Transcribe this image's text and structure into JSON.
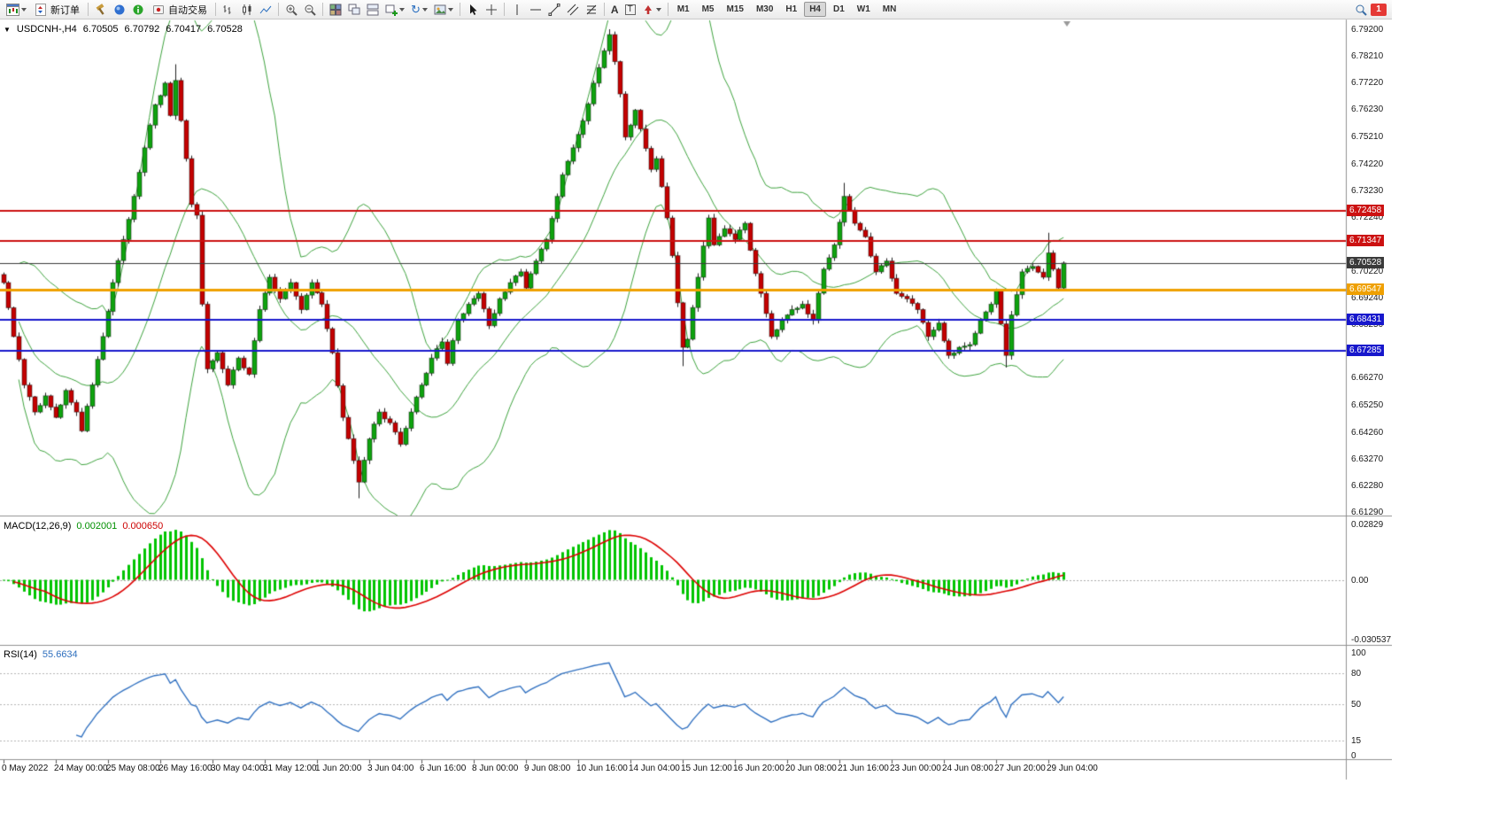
{
  "toolbar": {
    "new_order_label": "新订单",
    "autotrading_label": "自动交易",
    "timeframes": [
      "M1",
      "M5",
      "M15",
      "M30",
      "H1",
      "H4",
      "D1",
      "W1",
      "MN"
    ],
    "active_timeframe": "H4",
    "notification_count": "1"
  },
  "chart_header": {
    "symbol_period": "USDCNH-,H4",
    "open": "6.70505",
    "high": "6.70792",
    "low": "6.70417",
    "close": "6.70528"
  },
  "price_axis": {
    "ticks": [
      "6.79200",
      "6.78210",
      "6.77220",
      "6.76230",
      "6.75210",
      "6.74220",
      "6.73230",
      "6.72240",
      "6.70220",
      "6.69240",
      "6.68250",
      "6.66270",
      "6.65250",
      "6.64260",
      "6.63270",
      "6.62280",
      "6.61290"
    ]
  },
  "levels": [
    {
      "label": "6.72458",
      "price": 6.72458,
      "color": "#cc1111",
      "thickness": 2
    },
    {
      "label": "6.71347",
      "price": 6.71347,
      "color": "#cc1111",
      "thickness": 2
    },
    {
      "label": "6.69547",
      "price": 6.69547,
      "color": "#efa000",
      "thickness": 3
    },
    {
      "label": "6.68431",
      "price": 6.68431,
      "color": "#1717cc",
      "thickness": 2
    },
    {
      "label": "6.67285",
      "price": 6.67285,
      "color": "#1717cc",
      "thickness": 2
    }
  ],
  "current_price": {
    "label": "6.70528",
    "price": 6.70528,
    "color": "#3a3a3a"
  },
  "macd_panel": {
    "title": "MACD(12,26,9)",
    "value_main": "0.002001",
    "value_signal": "0.000650",
    "axis_labels": [
      {
        "text": "0.02829",
        "value": 0.02829
      },
      {
        "text": "0.00",
        "value": 0
      },
      {
        "text": "-0.030537",
        "value": -0.030537
      }
    ]
  },
  "rsi_panel": {
    "title": "RSI(14)",
    "value": "55.6634",
    "axis_labels": [
      {
        "text": "100",
        "value": 100
      },
      {
        "text": "80",
        "value": 80
      },
      {
        "text": "50",
        "value": 50
      },
      {
        "text": "15",
        "value": 15
      },
      {
        "text": "0",
        "value": 0
      }
    ],
    "levels": [
      80,
      50,
      15
    ]
  },
  "time_axis": {
    "labels": [
      "0 May 2022",
      "24 May 00:00",
      "25 May 08:00",
      "26 May 16:00",
      "30 May 04:00",
      "31 May 12:00",
      "1 Jun 20:00",
      "3 Jun 04:00",
      "6 Jun 16:00",
      "8 Jun 00:00",
      "9 Jun 08:00",
      "10 Jun 16:00",
      "14 Jun 04:00",
      "15 Jun 12:00",
      "16 Jun 20:00",
      "20 Jun 08:00",
      "21 Jun 16:00",
      "23 Jun 00:00",
      "24 Jun 08:00",
      "27 Jun 20:00",
      "29 Jun 04:00"
    ]
  },
  "chart_data": {
    "type": "candlestick",
    "symbol": "USDCNH",
    "period": "H4",
    "bars": 204,
    "price_range": {
      "max": 6.792,
      "min": 6.6129
    },
    "colors": {
      "up": "#0fa30f",
      "down": "#c40000",
      "wick": "#1f1f1f",
      "bollinger": "#3da23d",
      "macd_hist": "#00c400",
      "macd_signal": "#dd0000",
      "rsi": "#3070c0"
    },
    "indicators": [
      "Bollinger Bands(20,2)",
      "MACD(12,26,9)",
      "RSI(14)"
    ],
    "close_anchors": [
      [
        0,
        6.698
      ],
      [
        2,
        6.678
      ],
      [
        4,
        6.66
      ],
      [
        6,
        6.65
      ],
      [
        8,
        6.656
      ],
      [
        10,
        6.648
      ],
      [
        12,
        6.658
      ],
      [
        14,
        6.65
      ],
      [
        15,
        6.643
      ],
      [
        17,
        6.66
      ],
      [
        19,
        6.678
      ],
      [
        21,
        6.698
      ],
      [
        23,
        6.714
      ],
      [
        25,
        6.73
      ],
      [
        27,
        6.748
      ],
      [
        29,
        6.764
      ],
      [
        31,
        6.772
      ],
      [
        32,
        6.76
      ],
      [
        33,
        6.773
      ],
      [
        35,
        6.744
      ],
      [
        36,
        6.727
      ],
      [
        37,
        6.723
      ],
      [
        38,
        6.69
      ],
      [
        39,
        6.666
      ],
      [
        41,
        6.672
      ],
      [
        43,
        6.66
      ],
      [
        45,
        6.67
      ],
      [
        47,
        6.664
      ],
      [
        49,
        6.688
      ],
      [
        51,
        6.7
      ],
      [
        53,
        6.692
      ],
      [
        55,
        6.698
      ],
      [
        57,
        6.688
      ],
      [
        59,
        6.698
      ],
      [
        61,
        6.69
      ],
      [
        63,
        6.672
      ],
      [
        65,
        6.648
      ],
      [
        67,
        6.632
      ],
      [
        68,
        6.624
      ],
      [
        70,
        6.64
      ],
      [
        72,
        6.65
      ],
      [
        74,
        6.646
      ],
      [
        76,
        6.638
      ],
      [
        78,
        6.65
      ],
      [
        80,
        6.66
      ],
      [
        82,
        6.67
      ],
      [
        84,
        6.676
      ],
      [
        85,
        6.668
      ],
      [
        87,
        6.684
      ],
      [
        89,
        6.69
      ],
      [
        91,
        6.694
      ],
      [
        93,
        6.682
      ],
      [
        95,
        6.692
      ],
      [
        97,
        6.698
      ],
      [
        99,
        6.702
      ],
      [
        100,
        6.696
      ],
      [
        102,
        6.706
      ],
      [
        104,
        6.714
      ],
      [
        106,
        6.73
      ],
      [
        107,
        6.738
      ],
      [
        109,
        6.748
      ],
      [
        111,
        6.758
      ],
      [
        113,
        6.772
      ],
      [
        115,
        6.784
      ],
      [
        116,
        6.79
      ],
      [
        117,
        6.78
      ],
      [
        118,
        6.768
      ],
      [
        119,
        6.752
      ],
      [
        121,
        6.762
      ],
      [
        122,
        6.755
      ],
      [
        124,
        6.74
      ],
      [
        125,
        6.744
      ],
      [
        127,
        6.722
      ],
      [
        128,
        6.708
      ],
      [
        130,
        6.674
      ],
      [
        131,
        6.677
      ],
      [
        133,
        6.7
      ],
      [
        135,
        6.722
      ],
      [
        136,
        6.712
      ],
      [
        138,
        6.718
      ],
      [
        140,
        6.714
      ],
      [
        142,
        6.72
      ],
      [
        143,
        6.71
      ],
      [
        145,
        6.694
      ],
      [
        147,
        6.678
      ],
      [
        149,
        6.684
      ],
      [
        151,
        6.688
      ],
      [
        153,
        6.69
      ],
      [
        155,
        6.684
      ],
      [
        157,
        6.703
      ],
      [
        159,
        6.712
      ],
      [
        161,
        6.73
      ],
      [
        163,
        6.72
      ],
      [
        165,
        6.715
      ],
      [
        167,
        6.702
      ],
      [
        169,
        6.706
      ],
      [
        171,
        6.694
      ],
      [
        173,
        6.692
      ],
      [
        175,
        6.688
      ],
      [
        177,
        6.678
      ],
      [
        179,
        6.683
      ],
      [
        181,
        6.671
      ],
      [
        183,
        6.674
      ],
      [
        185,
        6.675
      ],
      [
        187,
        6.684
      ],
      [
        189,
        6.69
      ],
      [
        190,
        6.695
      ],
      [
        192,
        6.671
      ],
      [
        193,
        6.686
      ],
      [
        195,
        6.702
      ],
      [
        197,
        6.704
      ],
      [
        199,
        6.7
      ],
      [
        200,
        6.709
      ],
      [
        201,
        6.703
      ],
      [
        202,
        6.696
      ],
      [
        203,
        6.70528
      ]
    ],
    "wick_overrides": {
      "33": {
        "h": 6.779
      },
      "68": {
        "l": 6.618
      },
      "116": {
        "h": 6.792
      },
      "130": {
        "l": 6.667
      },
      "161": {
        "h": 6.735
      },
      "192": {
        "l": 6.6665
      },
      "200": {
        "h": 6.7165
      }
    }
  }
}
